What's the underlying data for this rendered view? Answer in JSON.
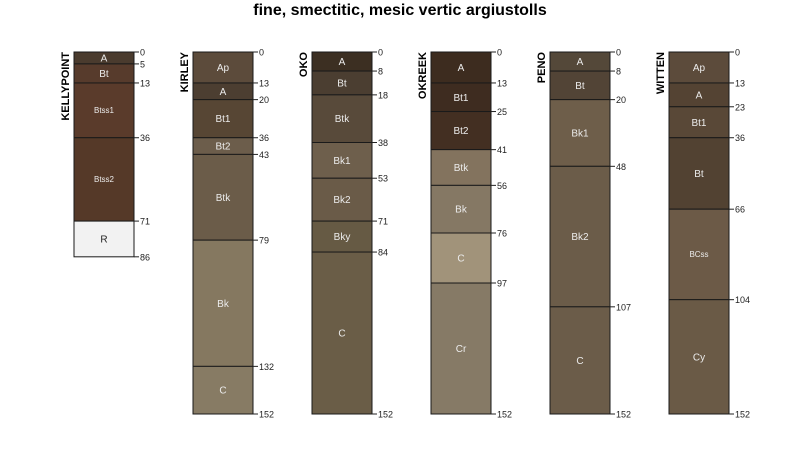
{
  "title": "fine, smectitic, mesic vertic argiustolls",
  "depth_max": 152,
  "profiles": [
    {
      "name": "KELLYPOINT",
      "horizons": [
        {
          "name": "A",
          "top": 0,
          "bottom": 5,
          "color": "#4a3b2e"
        },
        {
          "name": "Bt",
          "top": 5,
          "bottom": 13,
          "color": "#573b2c"
        },
        {
          "name": "Btss1",
          "top": 13,
          "bottom": 36,
          "color": "#5a3b2b"
        },
        {
          "name": "Btss2",
          "top": 36,
          "bottom": 71,
          "color": "#553928"
        },
        {
          "name": "R",
          "top": 71,
          "bottom": 86,
          "color": "#f2f2f2"
        }
      ]
    },
    {
      "name": "KIRLEY",
      "horizons": [
        {
          "name": "Ap",
          "top": 0,
          "bottom": 13,
          "color": "#5c4b3b"
        },
        {
          "name": "A",
          "top": 13,
          "bottom": 20,
          "color": "#4c3e31"
        },
        {
          "name": "Bt1",
          "top": 20,
          "bottom": 36,
          "color": "#574634"
        },
        {
          "name": "Bt2",
          "top": 36,
          "bottom": 43,
          "color": "#6c5d4b"
        },
        {
          "name": "Btk",
          "top": 43,
          "bottom": 79,
          "color": "#6b5c49"
        },
        {
          "name": "Bk",
          "top": 79,
          "bottom": 132,
          "color": "#857860"
        },
        {
          "name": "C",
          "top": 132,
          "bottom": 152,
          "color": "#877b64"
        }
      ]
    },
    {
      "name": "OKO",
      "horizons": [
        {
          "name": "A",
          "top": 0,
          "bottom": 8,
          "color": "#3c2f22"
        },
        {
          "name": "Bt",
          "top": 8,
          "bottom": 18,
          "color": "#4b3e31"
        },
        {
          "name": "Btk",
          "top": 18,
          "bottom": 38,
          "color": "#584a3a"
        },
        {
          "name": "Bk1",
          "top": 38,
          "bottom": 53,
          "color": "#6e5f4c"
        },
        {
          "name": "Bk2",
          "top": 53,
          "bottom": 71,
          "color": "#6a5b48"
        },
        {
          "name": "Bky",
          "top": 71,
          "bottom": 84,
          "color": "#665a44"
        },
        {
          "name": "C",
          "top": 84,
          "bottom": 152,
          "color": "#6a5d47"
        }
      ]
    },
    {
      "name": "OKREEK",
      "horizons": [
        {
          "name": "A",
          "top": 0,
          "bottom": 13,
          "color": "#3d2c1f"
        },
        {
          "name": "Bt1",
          "top": 13,
          "bottom": 25,
          "color": "#3e2c20"
        },
        {
          "name": "Bt2",
          "top": 25,
          "bottom": 41,
          "color": "#432f22"
        },
        {
          "name": "Btk",
          "top": 41,
          "bottom": 56,
          "color": "#83735e"
        },
        {
          "name": "Bk",
          "top": 56,
          "bottom": 76,
          "color": "#857864"
        },
        {
          "name": "C",
          "top": 76,
          "bottom": 97,
          "color": "#a1937a"
        },
        {
          "name": "Cr",
          "top": 97,
          "bottom": 152,
          "color": "#867a66"
        }
      ]
    },
    {
      "name": "PENO",
      "horizons": [
        {
          "name": "A",
          "top": 0,
          "bottom": 8,
          "color": "#544839"
        },
        {
          "name": "Bt",
          "top": 8,
          "bottom": 20,
          "color": "#524436"
        },
        {
          "name": "Bk1",
          "top": 20,
          "bottom": 48,
          "color": "#6e5e4a"
        },
        {
          "name": "Bk2",
          "top": 48,
          "bottom": 107,
          "color": "#6b5c49"
        },
        {
          "name": "C",
          "top": 107,
          "bottom": 152,
          "color": "#6b5c49"
        }
      ]
    },
    {
      "name": "WITTEN",
      "horizons": [
        {
          "name": "Ap",
          "top": 0,
          "bottom": 13,
          "color": "#5c4b3b"
        },
        {
          "name": "A",
          "top": 13,
          "bottom": 23,
          "color": "#544333"
        },
        {
          "name": "Bt1",
          "top": 23,
          "bottom": 36,
          "color": "#594837"
        },
        {
          "name": "Bt",
          "top": 36,
          "bottom": 66,
          "color": "#524232"
        },
        {
          "name": "BCss",
          "top": 66,
          "bottom": 104,
          "color": "#6c5a47"
        },
        {
          "name": "Cy",
          "top": 104,
          "bottom": 152,
          "color": "#6a5a46"
        }
      ]
    }
  ]
}
